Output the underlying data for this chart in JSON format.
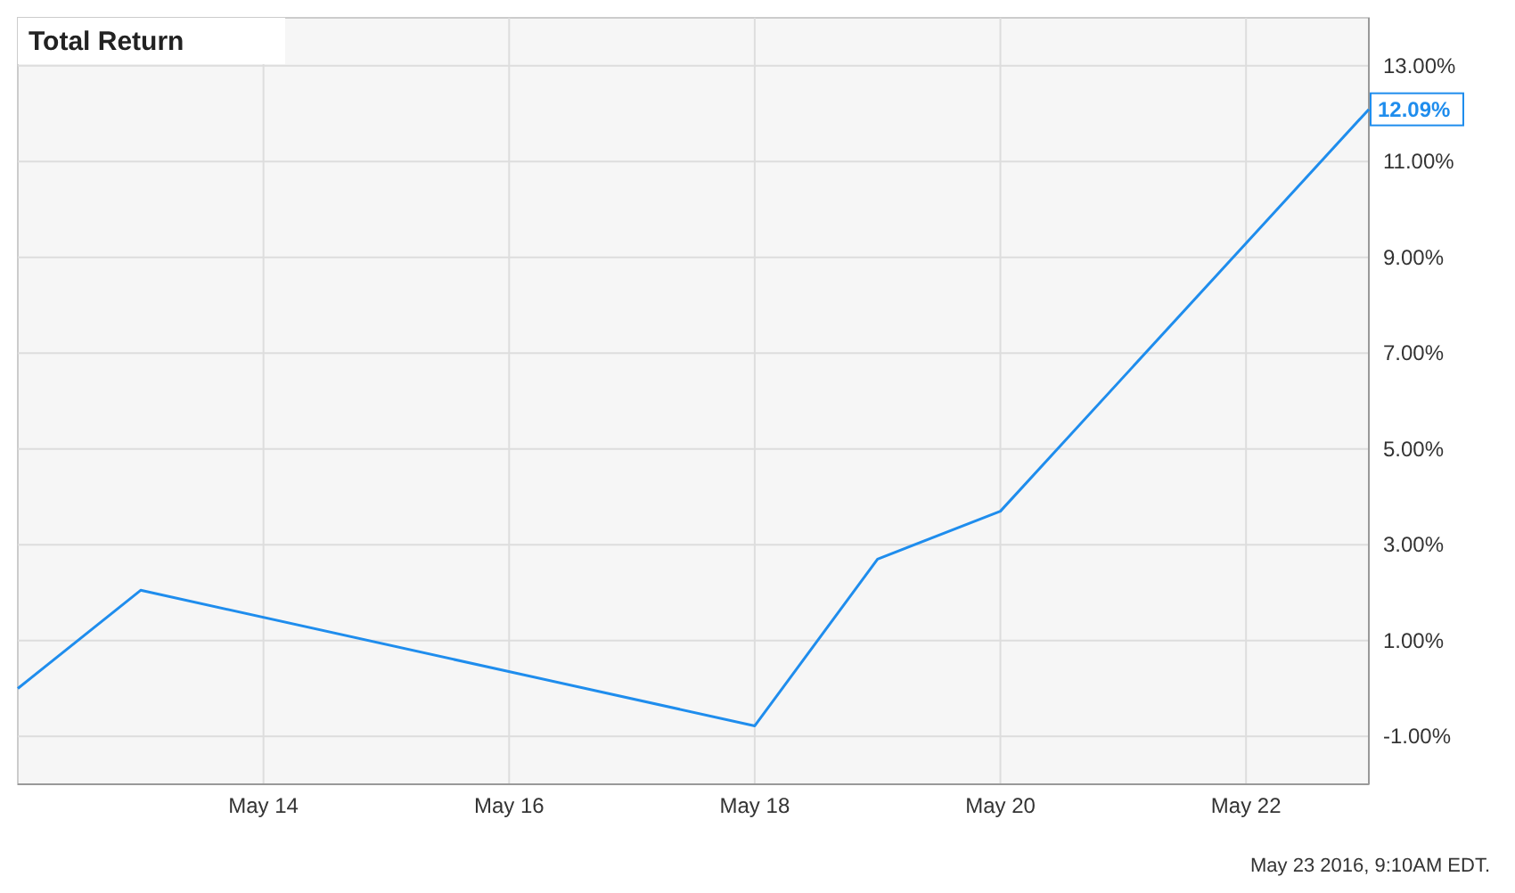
{
  "chart_data": {
    "type": "line",
    "title": "Total Return",
    "x": [
      "2016-05-12",
      "2016-05-13",
      "2016-05-18",
      "2016-05-19",
      "2016-05-20",
      "2016-05-23"
    ],
    "series": [
      {
        "color": "#1f8ded",
        "values": [
          0.0,
          2.05,
          -0.78,
          2.7,
          3.7,
          12.09
        ]
      }
    ],
    "xlim": [
      "2016-05-12",
      "2016-05-23"
    ],
    "xticks": [
      {
        "value": "2016-05-14",
        "label": "May 14"
      },
      {
        "value": "2016-05-16",
        "label": "May 16"
      },
      {
        "value": "2016-05-18",
        "label": "May 18"
      },
      {
        "value": "2016-05-20",
        "label": "May 20"
      },
      {
        "value": "2016-05-22",
        "label": "May 22"
      }
    ],
    "ylim": [
      -2,
      14
    ],
    "yticks": [
      {
        "value": -1,
        "label": "-1.00%"
      },
      {
        "value": 1,
        "label": "1.00%"
      },
      {
        "value": 3,
        "label": "3.00%"
      },
      {
        "value": 5,
        "label": "5.00%"
      },
      {
        "value": 7,
        "label": "7.00%"
      },
      {
        "value": 9,
        "label": "9.00%"
      },
      {
        "value": 11,
        "label": "11.00%"
      },
      {
        "value": 13,
        "label": "13.00%"
      }
    ],
    "grid": true,
    "marker": "none",
    "line_style": "solid",
    "annotations": [
      {
        "text": "12.09%",
        "x": "2016-05-23",
        "y": 12.09
      },
      "May 23 2016, 9:10AM EDT."
    ]
  }
}
